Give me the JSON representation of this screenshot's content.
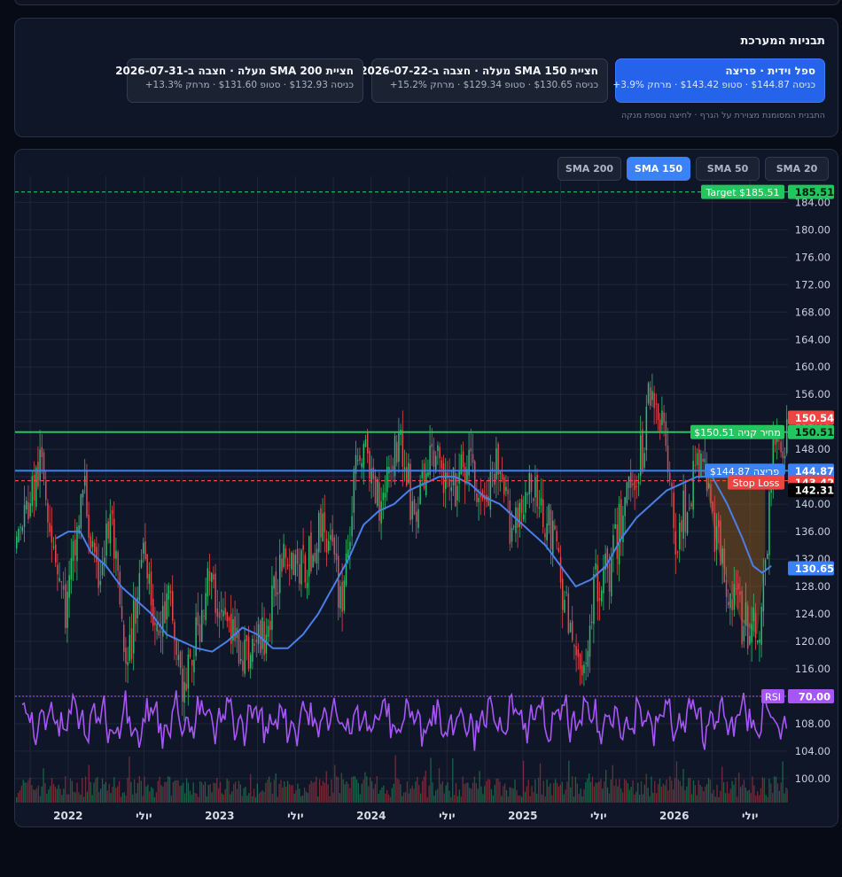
{
  "patterns": {
    "title": "תבניות המערכת",
    "hint": "התבנית המסומנת מצוירת על הגרף · לחיצה נוספת מנקה",
    "cards": [
      {
        "title": "ספל וידית · פריצה",
        "detail": "כניסה $144.87 · סטופ $143.42 · מרחק 3.9%+",
        "active": true
      },
      {
        "title": "חציית SMA 150 מעלה · חצבה ב-2026-07-22",
        "detail": "כניסה $130.65 · סטופ $129.34 · מרחק 15.2%+",
        "active": false
      },
      {
        "title": "חציית SMA 200 מעלה · חצבה ב-2026-07-31",
        "detail": "כניסה $132.93 · סטופ $131.60 · מרחק 13.3%+",
        "active": false
      }
    ]
  },
  "sma_tabs": [
    {
      "label": "SMA 20",
      "active": false
    },
    {
      "label": "SMA 50",
      "active": false
    },
    {
      "label": "SMA 150",
      "active": true
    },
    {
      "label": "SMA 200",
      "active": false
    }
  ],
  "chart_data": {
    "type": "line",
    "y_ticks": [
      100,
      104,
      108,
      112,
      116,
      120,
      124,
      128,
      132,
      136,
      140,
      144,
      148,
      152,
      156,
      160,
      164,
      168,
      172,
      176,
      180,
      184
    ],
    "y_tick_labels": [
      "100.00",
      "104.00",
      "108.00",
      "112.00",
      "116.00",
      "120.00",
      "124.00",
      "128.00",
      "132.00",
      "136.00",
      "140.00",
      "144.00",
      "148.00",
      "152.00",
      "156.00",
      "160.00",
      "164.00",
      "168.00",
      "172.00",
      "176.00",
      "180.00",
      "184.00"
    ],
    "ylim": [
      96.5,
      186.5
    ],
    "x_labels": [
      "2022",
      "יולי",
      "2023",
      "יולי",
      "2024",
      "יולי",
      "2025",
      "יולי",
      "2026",
      "יולי"
    ],
    "x_label_dates": [
      2022.0,
      2022.5,
      2023.0,
      2023.5,
      2024.0,
      2024.5,
      2025.0,
      2025.5,
      2026.0,
      2026.5
    ],
    "xlim": [
      2021.65,
      2026.75
    ],
    "price_anchors": {
      "dates": [
        2021.65,
        2021.82,
        2021.98,
        2022.1,
        2022.18,
        2022.28,
        2022.38,
        2022.5,
        2022.58,
        2022.66,
        2022.76,
        2022.92,
        2023.05,
        2023.18,
        2023.32,
        2023.42,
        2023.55,
        2023.68,
        2023.8,
        2023.92,
        2024.05,
        2024.18,
        2024.28,
        2024.4,
        2024.52,
        2024.63,
        2024.75,
        2024.82,
        2024.92,
        2025.02,
        2025.12,
        2025.22,
        2025.3,
        2025.38,
        2025.48,
        2025.58,
        2025.68,
        2025.78,
        2025.84,
        2025.92,
        2026.0,
        2026.08,
        2026.18,
        2026.28,
        2026.36,
        2026.44,
        2026.55,
        2026.6,
        2026.66
      ],
      "values": [
        134,
        146,
        124,
        143,
        128,
        138,
        114,
        136,
        120,
        126,
        112,
        129,
        122,
        118,
        122,
        135,
        130,
        138,
        126,
        149,
        141,
        150,
        138,
        148,
        141,
        146,
        139,
        145,
        137,
        142,
        140,
        133,
        122,
        114,
        129,
        131,
        142,
        147,
        158,
        152,
        135,
        140,
        147,
        134,
        128,
        123,
        121,
        133,
        150
      ]
    },
    "sma150": {
      "name": "SMA 150",
      "dates": [
        2021.92,
        2022.0,
        2022.08,
        2022.15,
        2022.25,
        2022.35,
        2022.45,
        2022.55,
        2022.65,
        2022.75,
        2022.85,
        2022.95,
        2023.05,
        2023.15,
        2023.25,
        2023.35,
        2023.45,
        2023.55,
        2023.65,
        2023.75,
        2023.85,
        2023.95,
        2024.05,
        2024.15,
        2024.25,
        2024.35,
        2024.45,
        2024.55,
        2024.65,
        2024.75,
        2024.85,
        2024.95,
        2025.05,
        2025.15,
        2025.25,
        2025.35,
        2025.45,
        2025.55,
        2025.65,
        2025.75,
        2025.85,
        2025.95,
        2026.05,
        2026.15,
        2026.25,
        2026.35,
        2026.45,
        2026.52,
        2026.58,
        2026.64
      ],
      "values": [
        135,
        136,
        136,
        133,
        131,
        128,
        126,
        124,
        121,
        120,
        119,
        118.5,
        120,
        122,
        121,
        119,
        119,
        121,
        124,
        128,
        132,
        137,
        139,
        140,
        142,
        143,
        144,
        144,
        143,
        141,
        140,
        138,
        136,
        134,
        131,
        128,
        129,
        131,
        135,
        138,
        140,
        142,
        143,
        144,
        144,
        140,
        135,
        131,
        130,
        131
      ]
    },
    "levels": {
      "target": {
        "value": 185.51,
        "label": "Target $185.51",
        "tag": "185.51",
        "color": "#22c55e"
      },
      "resistance": {
        "value": 150.51,
        "label": "מחיר קניה $150.51",
        "tag": "150.51",
        "color": "#22c55e"
      },
      "breakout": {
        "value": 144.87,
        "label": "פריצה $144.87",
        "tag": "144.87",
        "color": "#3b82f6"
      },
      "stop_loss": {
        "value": 143.42,
        "label": "Stop Loss",
        "tag": "143.42",
        "color": "#ef4444"
      },
      "upper_tag": {
        "value": 150.54,
        "tag": "150.54",
        "color": "#ef4444"
      },
      "last_price": {
        "value": 142.31,
        "tag": "142.31",
        "color": "#000000"
      },
      "sma_tag": {
        "value": 130.65,
        "tag": "130.65",
        "color": "#3b82f6"
      },
      "rsi": {
        "value": 70.0,
        "label": "RSI",
        "tag": "70.00",
        "color": "#a855f7"
      }
    },
    "rsi_threshold": 70,
    "cup_zone": {
      "x_from": 2026.18,
      "x_to": 2026.6,
      "color": "#c2731a"
    },
    "grid": true,
    "colors": {
      "up": "#2bbd6e",
      "down": "#e5484d",
      "sma": "#4a7fe8",
      "rsi": "#a855f7",
      "grid": "#1e2738"
    }
  }
}
